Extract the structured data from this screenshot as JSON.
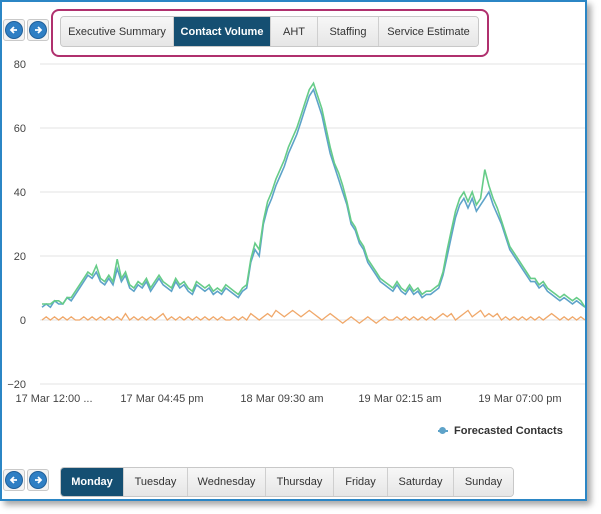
{
  "top_tabs": [
    {
      "label": "Executive Summary",
      "active": false
    },
    {
      "label": "Contact Volume",
      "active": true
    },
    {
      "label": "AHT",
      "active": false
    },
    {
      "label": "Staffing",
      "active": false
    },
    {
      "label": "Service Estimate",
      "active": false
    }
  ],
  "day_tabs": [
    {
      "label": "Monday",
      "active": true
    },
    {
      "label": "Tuesday",
      "active": false
    },
    {
      "label": "Wednesday",
      "active": false
    },
    {
      "label": "Thursday",
      "active": false
    },
    {
      "label": "Friday",
      "active": false
    },
    {
      "label": "Saturday",
      "active": false
    },
    {
      "label": "Sunday",
      "active": false
    }
  ],
  "icons": {
    "prev": "arrow-left-icon",
    "next": "arrow-right-icon"
  },
  "colors": {
    "accent": "#154f72",
    "highlight_border": "#b0306e",
    "forecast": "#5ea3c9",
    "actual": "#66cc88",
    "variance": "#f0a86a"
  },
  "chart_data": {
    "type": "line",
    "title": "",
    "xlabel": "",
    "ylabel": "",
    "ylim": [
      -20,
      80
    ],
    "yticks": [
      "80",
      "60",
      "40",
      "20",
      "0",
      "−20"
    ],
    "xticks": [
      "17 Mar 12:00 ...",
      "17 Mar 04:45 pm",
      "18 Mar 09:30 am",
      "19 Mar 02:15 am",
      "19 Mar 07:00 pm"
    ],
    "grid": true,
    "legend_position": "bottom-right",
    "series": [
      {
        "name": "Forecasted Contacts",
        "color": "#5ea3c9",
        "values": [
          4,
          5,
          4,
          6,
          5,
          5,
          7,
          6,
          8,
          10,
          12,
          14,
          13,
          15,
          12,
          11,
          13,
          11,
          16,
          12,
          14,
          10,
          9,
          11,
          10,
          12,
          9,
          11,
          13,
          11,
          10,
          9,
          12,
          10,
          11,
          9,
          8,
          11,
          10,
          9,
          10,
          8,
          9,
          8,
          10,
          9,
          8,
          7,
          9,
          10,
          18,
          22,
          20,
          30,
          35,
          38,
          42,
          45,
          48,
          52,
          55,
          58,
          62,
          66,
          70,
          72,
          68,
          64,
          58,
          52,
          48,
          44,
          40,
          36,
          30,
          28,
          24,
          22,
          18,
          16,
          14,
          12,
          11,
          10,
          9,
          11,
          9,
          8,
          10,
          8,
          9,
          7,
          8,
          8,
          9,
          10,
          14,
          20,
          26,
          32,
          36,
          38,
          35,
          38,
          34,
          36,
          38,
          40,
          36,
          33,
          30,
          26,
          22,
          20,
          18,
          16,
          14,
          12,
          12,
          10,
          11,
          9,
          8,
          7,
          6,
          7,
          6,
          5,
          6,
          5,
          4
        ]
      },
      {
        "name": "",
        "color": "#66cc88",
        "values": [
          5,
          5,
          5,
          6,
          6,
          5,
          7,
          7,
          9,
          11,
          13,
          15,
          14,
          17,
          13,
          12,
          14,
          12,
          19,
          13,
          15,
          11,
          10,
          12,
          11,
          13,
          10,
          12,
          14,
          12,
          11,
          10,
          13,
          11,
          12,
          10,
          9,
          12,
          11,
          10,
          11,
          9,
          10,
          9,
          11,
          10,
          9,
          8,
          10,
          11,
          19,
          24,
          22,
          31,
          37,
          40,
          44,
          47,
          50,
          54,
          57,
          60,
          64,
          68,
          72,
          74,
          70,
          66,
          60,
          54,
          49,
          46,
          42,
          37,
          31,
          29,
          25,
          23,
          19,
          17,
          15,
          13,
          12,
          11,
          10,
          12,
          10,
          9,
          11,
          9,
          10,
          8,
          9,
          9,
          10,
          11,
          15,
          22,
          28,
          34,
          38,
          40,
          37,
          40,
          36,
          38,
          47,
          42,
          38,
          35,
          31,
          27,
          23,
          21,
          19,
          17,
          15,
          13,
          13,
          11,
          12,
          10,
          9,
          8,
          7,
          8,
          7,
          6,
          7,
          6,
          4
        ]
      },
      {
        "name": "",
        "color": "#f0a86a",
        "values": [
          0,
          1,
          0,
          1,
          0,
          1,
          0,
          1,
          0,
          0,
          1,
          0,
          1,
          0,
          1,
          0,
          1,
          0,
          1,
          0,
          2,
          0,
          1,
          0,
          1,
          0,
          1,
          0,
          1,
          2,
          0,
          1,
          0,
          1,
          0,
          1,
          0,
          1,
          0,
          1,
          0,
          1,
          0,
          1,
          0,
          0,
          1,
          0,
          1,
          0,
          2,
          1,
          0,
          1,
          2,
          1,
          3,
          2,
          1,
          2,
          3,
          2,
          1,
          2,
          3,
          2,
          1,
          0,
          1,
          2,
          1,
          0,
          -1,
          0,
          1,
          0,
          -1,
          0,
          1,
          0,
          -1,
          0,
          1,
          0,
          0,
          1,
          0,
          1,
          0,
          1,
          0,
          1,
          0,
          1,
          0,
          1,
          2,
          1,
          2,
          0,
          1,
          2,
          3,
          1,
          2,
          3,
          1,
          2,
          1,
          2,
          0,
          1,
          0,
          1,
          0,
          1,
          0,
          1,
          0,
          1,
          0,
          1,
          2,
          1,
          0,
          1,
          0,
          1,
          0,
          1,
          0
        ]
      }
    ]
  }
}
